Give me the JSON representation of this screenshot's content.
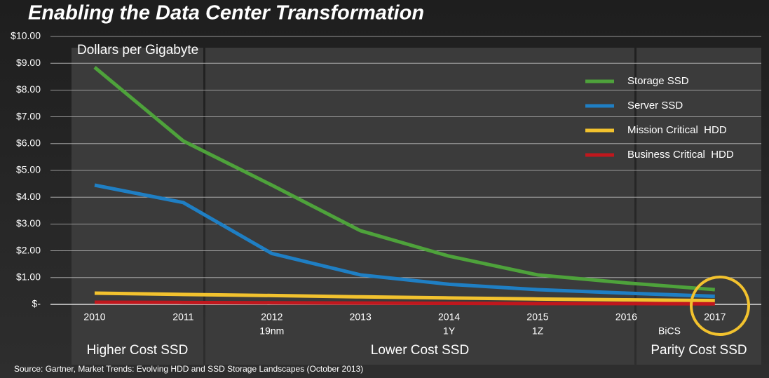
{
  "chart_data": {
    "type": "line",
    "title": "Enabling the Data Center Transformation",
    "y_label": "Dollars per Gigabyte",
    "source": "Source: Gartner, Market Trends: Evolving HDD and SSD Storage Landscapes (October 2013)",
    "categories": [
      "2010",
      "2011",
      "2012",
      "2013",
      "2014",
      "2015",
      "2016",
      "2017"
    ],
    "sublabels": [
      null,
      null,
      "19nm",
      null,
      "1Y",
      "1Z",
      null,
      null
    ],
    "annotation": "BiCS",
    "regions": [
      "Higher Cost SSD",
      "Lower Cost SSD",
      "Parity Cost SSD"
    ],
    "series": [
      {
        "name": "Storage SSD",
        "color": "#4ea23b",
        "values": [
          8.85,
          6.1,
          4.45,
          2.75,
          1.8,
          1.1,
          0.8,
          0.55
        ]
      },
      {
        "name": "Server SSD",
        "color": "#1f7fc4",
        "values": [
          4.45,
          3.8,
          1.9,
          1.1,
          0.75,
          0.55,
          0.42,
          0.3
        ]
      },
      {
        "name": "Mission Critical  HDD",
        "color": "#f2c22e",
        "values": [
          0.42,
          0.37,
          0.33,
          0.28,
          0.24,
          0.2,
          0.17,
          0.14
        ]
      },
      {
        "name": "Business Critical  HDD",
        "color": "#c0171d",
        "values": [
          0.08,
          0.07,
          0.06,
          0.05,
          0.04,
          0.03,
          0.03,
          0.02
        ]
      }
    ],
    "ylim": [
      0,
      10
    ],
    "yticks": [
      {
        "value": 0,
        "label": "$-"
      },
      {
        "value": 1,
        "label": "$1.00"
      },
      {
        "value": 2,
        "label": "$2.00"
      },
      {
        "value": 3,
        "label": "$3.00"
      },
      {
        "value": 4,
        "label": "$4.00"
      },
      {
        "value": 5,
        "label": "$5.00"
      },
      {
        "value": 6,
        "label": "$6.00"
      },
      {
        "value": 7,
        "label": "$7.00"
      },
      {
        "value": 8,
        "label": "$8.00"
      },
      {
        "value": 9,
        "label": "$9.00"
      },
      {
        "value": 10,
        "label": "$10.00"
      }
    ],
    "grid": true
  }
}
